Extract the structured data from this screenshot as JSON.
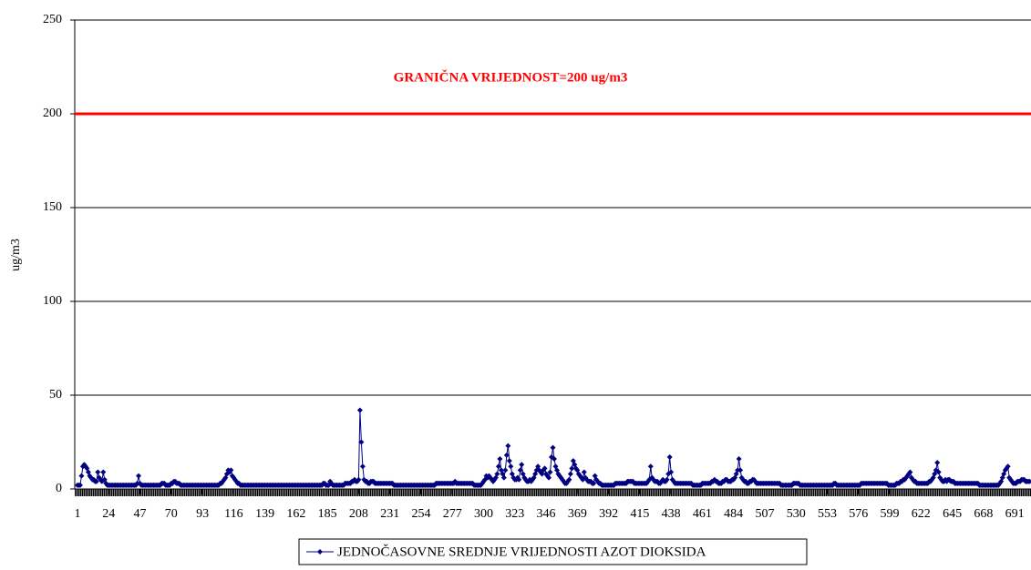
{
  "chart_data": {
    "type": "line",
    "annotation": "GRANIČNA VRIJEDNOST=200 ug/m3",
    "ylabel": "ug/m3",
    "threshold": 200,
    "threshold_color": "#ff0000",
    "xlim": [
      -1,
      703
    ],
    "xticks": [
      1,
      24,
      47,
      70,
      93,
      116,
      139,
      162,
      185,
      208,
      231,
      254,
      277,
      300,
      323,
      346,
      369,
      392,
      415,
      438,
      461,
      484,
      507,
      530,
      553,
      576,
      599,
      622,
      645,
      668,
      691
    ],
    "ylim": [
      0,
      250
    ],
    "yticks": [
      0,
      50,
      100,
      150,
      200,
      250
    ],
    "grid": true,
    "legend": "bottom",
    "series": [
      {
        "name": "JEDNOČASOVNE SREDNJE VRIJEDNOSTI AZOT DIOKSIDA",
        "color": "#000080",
        "values": [
          2,
          2,
          2,
          7,
          12,
          13,
          12,
          11,
          9,
          7,
          6,
          5,
          5,
          4,
          4,
          9,
          6,
          5,
          4,
          9,
          5,
          3,
          2,
          2,
          2,
          2,
          2,
          2,
          2,
          2,
          2,
          2,
          2,
          2,
          2,
          2,
          2,
          2,
          2,
          2,
          2,
          2,
          2,
          2,
          3,
          7,
          3,
          2,
          2,
          2,
          2,
          2,
          2,
          2,
          2,
          2,
          2,
          2,
          2,
          2,
          2,
          2,
          3,
          3,
          3,
          2,
          2,
          2,
          2,
          3,
          3,
          4,
          4,
          3,
          3,
          3,
          2,
          2,
          2,
          2,
          2,
          2,
          2,
          2,
          2,
          2,
          2,
          2,
          2,
          2,
          2,
          2,
          2,
          2,
          2,
          2,
          2,
          2,
          2,
          2,
          2,
          2,
          2,
          2,
          2,
          3,
          3,
          4,
          5,
          6,
          8,
          10,
          9,
          10,
          7,
          6,
          5,
          4,
          3,
          3,
          2,
          2,
          2,
          2,
          2,
          2,
          2,
          2,
          2,
          2,
          2,
          2,
          2,
          2,
          2,
          2,
          2,
          2,
          2,
          2,
          2,
          2,
          2,
          2,
          2,
          2,
          2,
          2,
          2,
          2,
          2,
          2,
          2,
          2,
          2,
          2,
          2,
          2,
          2,
          2,
          2,
          2,
          2,
          2,
          2,
          2,
          2,
          2,
          2,
          2,
          2,
          2,
          2,
          2,
          2,
          2,
          2,
          2,
          2,
          2,
          2,
          3,
          3,
          2,
          2,
          2,
          4,
          3,
          2,
          2,
          2,
          2,
          2,
          2,
          2,
          2,
          2,
          3,
          3,
          3,
          3,
          3,
          4,
          4,
          5,
          4,
          4,
          5,
          42,
          25,
          12,
          5,
          4,
          4,
          3,
          3,
          4,
          4,
          4,
          3,
          3,
          3,
          3,
          3,
          3,
          3,
          3,
          3,
          3,
          3,
          3,
          3,
          3,
          2,
          2,
          2,
          2,
          2,
          2,
          2,
          2,
          2,
          2,
          2,
          2,
          2,
          2,
          2,
          2,
          2,
          2,
          2,
          2,
          2,
          2,
          2,
          2,
          2,
          2,
          2,
          2,
          2,
          2,
          2,
          3,
          3,
          3,
          3,
          3,
          3,
          3,
          3,
          3,
          3,
          3,
          3,
          3,
          3,
          4,
          3,
          3,
          3,
          3,
          3,
          3,
          3,
          3,
          3,
          3,
          3,
          3,
          3,
          2,
          2,
          2,
          2,
          2,
          2,
          3,
          4,
          5,
          7,
          6,
          7,
          6,
          5,
          4,
          5,
          6,
          8,
          12,
          16,
          10,
          8,
          6,
          10,
          18,
          23,
          15,
          12,
          8,
          6,
          5,
          5,
          6,
          5,
          10,
          13,
          8,
          6,
          5,
          4,
          4,
          5,
          4,
          5,
          6,
          8,
          10,
          12,
          10,
          9,
          8,
          10,
          11,
          8,
          7,
          6,
          9,
          17,
          22,
          16,
          12,
          10,
          8,
          7,
          6,
          5,
          4,
          3,
          3,
          4,
          5,
          8,
          11,
          15,
          13,
          11,
          10,
          8,
          7,
          6,
          5,
          9,
          6,
          5,
          4,
          4,
          4,
          3,
          3,
          7,
          5,
          4,
          3,
          3,
          2,
          2,
          2,
          2,
          2,
          2,
          2,
          2,
          2,
          2,
          3,
          3,
          3,
          3,
          3,
          3,
          3,
          3,
          3,
          4,
          4,
          4,
          4,
          4,
          3,
          3,
          3,
          3,
          3,
          3,
          3,
          3,
          3,
          3,
          4,
          5,
          12,
          6,
          5,
          4,
          4,
          4,
          3,
          3,
          4,
          5,
          4,
          4,
          5,
          8,
          17,
          9,
          5,
          4,
          3,
          3,
          3,
          3,
          3,
          3,
          3,
          3,
          3,
          3,
          3,
          3,
          3,
          2,
          2,
          2,
          2,
          2,
          2,
          2,
          3,
          3,
          3,
          3,
          3,
          3,
          3,
          4,
          4,
          5,
          4,
          4,
          3,
          3,
          3,
          4,
          4,
          5,
          5,
          4,
          4,
          4,
          5,
          5,
          6,
          8,
          10,
          16,
          10,
          6,
          5,
          4,
          4,
          3,
          3,
          4,
          4,
          5,
          5,
          4,
          3,
          3,
          3,
          3,
          3,
          3,
          3,
          3,
          3,
          3,
          3,
          3,
          3,
          3,
          3,
          3,
          3,
          3,
          2,
          2,
          2,
          2,
          2,
          2,
          2,
          2,
          2,
          3,
          3,
          3,
          3,
          3,
          2,
          2,
          2,
          2,
          2,
          2,
          2,
          2,
          2,
          2,
          2,
          2,
          2,
          2,
          2,
          2,
          2,
          2,
          2,
          2,
          2,
          2,
          2,
          2,
          2,
          3,
          3,
          2,
          2,
          2,
          2,
          2,
          2,
          2,
          2,
          2,
          2,
          2,
          2,
          2,
          2,
          2,
          2,
          2,
          2,
          3,
          3,
          3,
          3,
          3,
          3,
          3,
          3,
          3,
          3,
          3,
          3,
          3,
          3,
          3,
          3,
          3,
          3,
          3,
          3,
          2,
          2,
          2,
          2,
          2,
          2,
          3,
          3,
          3,
          4,
          4,
          5,
          5,
          6,
          7,
          8,
          9,
          6,
          5,
          4,
          4,
          3,
          3,
          3,
          3,
          3,
          3,
          3,
          3,
          3,
          4,
          4,
          5,
          6,
          8,
          10,
          14,
          9,
          6,
          5,
          4,
          4,
          5,
          4,
          5,
          5,
          4,
          4,
          4,
          3,
          3,
          3,
          3,
          3,
          3,
          3,
          3,
          3,
          3,
          3,
          3,
          3,
          3,
          3,
          3,
          3,
          3,
          2,
          2,
          2,
          2,
          2,
          2,
          2,
          2,
          2,
          2,
          2,
          2,
          2,
          2,
          2,
          3,
          4,
          6,
          8,
          10,
          11,
          12,
          6,
          5,
          4,
          3,
          3,
          3,
          4,
          4,
          4,
          5,
          5,
          5,
          4,
          4,
          4,
          4
        ]
      }
    ]
  }
}
